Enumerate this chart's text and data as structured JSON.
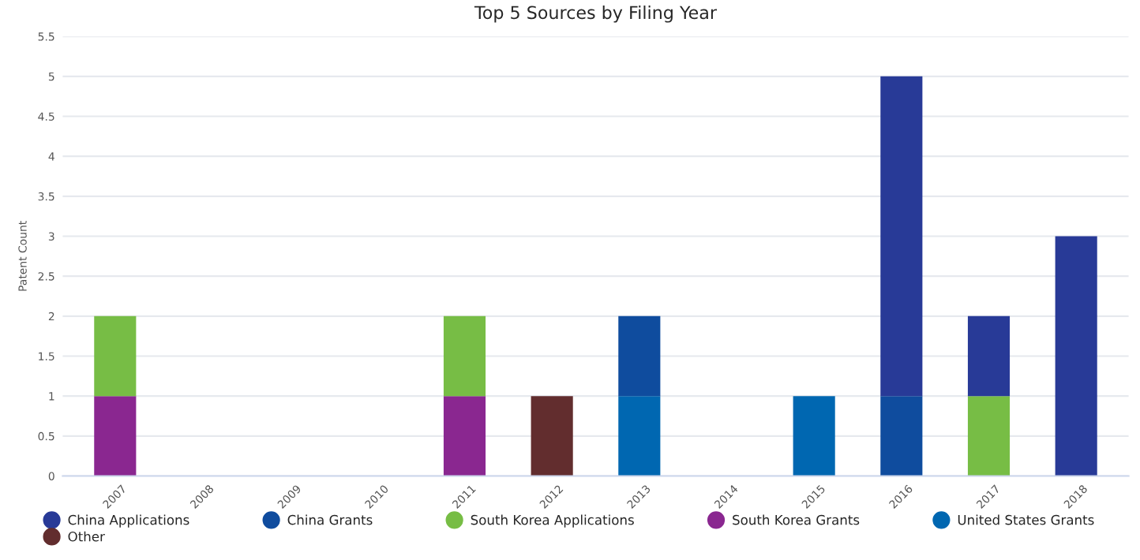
{
  "chart_data": {
    "type": "bar",
    "title": "Top 5 Sources by Filing Year",
    "ylabel": "Patent Count",
    "stacked": true,
    "categories": [
      "2007",
      "2008",
      "2009",
      "2010",
      "2011",
      "2012",
      "2013",
      "2014",
      "2015",
      "2016",
      "2017",
      "2018"
    ],
    "series": [
      {
        "name": "Other",
        "color": "#622d2e",
        "values": [
          null,
          null,
          null,
          null,
          null,
          1,
          null,
          null,
          null,
          null,
          null,
          null
        ]
      },
      {
        "name": "United States Grants",
        "color": "#0067b1",
        "values": [
          null,
          null,
          null,
          null,
          null,
          null,
          1,
          null,
          1,
          null,
          null,
          null
        ]
      },
      {
        "name": "South Korea Grants",
        "color": "#8a2790",
        "values": [
          1,
          null,
          null,
          null,
          1,
          null,
          null,
          null,
          null,
          null,
          null,
          null
        ]
      },
      {
        "name": "South Korea Applications",
        "color": "#77bd45",
        "values": [
          1,
          null,
          null,
          null,
          1,
          null,
          null,
          null,
          null,
          null,
          1,
          null
        ]
      },
      {
        "name": "China Grants",
        "color": "#0f4c9e",
        "values": [
          null,
          null,
          null,
          null,
          null,
          null,
          1,
          null,
          null,
          1,
          null,
          null
        ]
      },
      {
        "name": "China Applications",
        "color": "#283a97",
        "values": [
          null,
          null,
          null,
          null,
          null,
          null,
          null,
          null,
          null,
          4,
          1,
          3
        ]
      }
    ],
    "ylim": [
      0,
      5.5
    ],
    "yticks": [
      0,
      0.5,
      1,
      1.5,
      2,
      2.5,
      3,
      3.5,
      4,
      4.5,
      5,
      5.5
    ],
    "grid": "y",
    "legend": "bottom"
  }
}
